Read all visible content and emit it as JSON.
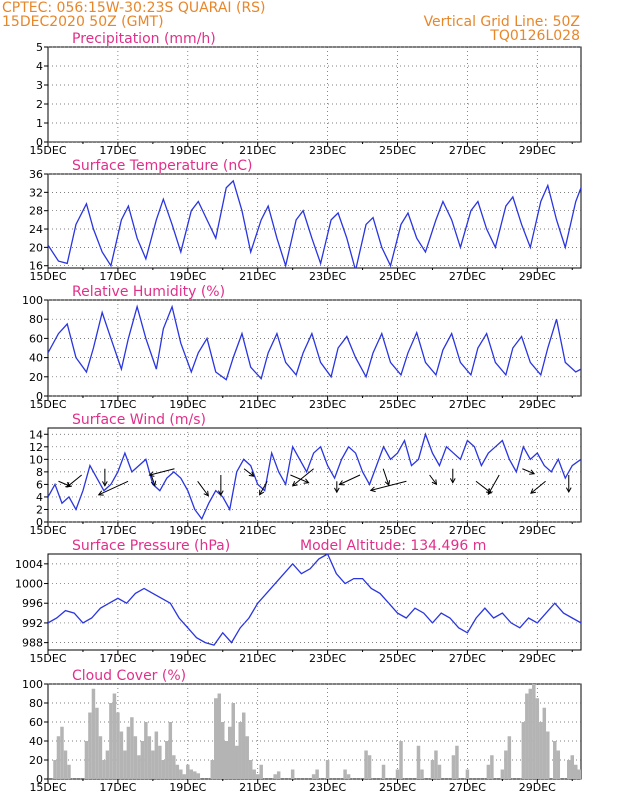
{
  "header": {
    "line1_left": "CPTEC:   056:15W-30:23S   QUARAI (RS)",
    "line2_left": "15DEC2020 50Z (GMT)",
    "line1_right": "Vertical Grid Line: 50Z",
    "line2_right": "TQ0126L028"
  },
  "colors": {
    "header": "#e8862a",
    "title": "#e0308a",
    "line": "#2a35e0",
    "bars": "#b4b4b4"
  },
  "x_ticks": [
    "15DEC",
    "17DEC",
    "19DEC",
    "21DEC",
    "23DEC",
    "25DEC",
    "27DEC",
    "29DEC"
  ],
  "x_ticks_sub": [
    "202",
    "202",
    "202",
    "202",
    "202"
  ],
  "chart_data": [
    {
      "id": "precip",
      "type": "line",
      "title": "Precipitation (mm/h)",
      "ylim": [
        0,
        5
      ],
      "yticks": [
        0,
        1,
        2,
        3,
        4,
        5
      ],
      "x_range_days": [
        0,
        15.25
      ],
      "series": [
        {
          "values": [
            0,
            0,
            0,
            0,
            0,
            0,
            0,
            0,
            0,
            0,
            0,
            0,
            0,
            0,
            0,
            0
          ]
        }
      ]
    },
    {
      "id": "temp",
      "type": "line",
      "title": "Surface Temperature (nC)",
      "ylim": [
        15.5,
        36
      ],
      "yticks": [
        16,
        20,
        24,
        28,
        32,
        36
      ],
      "x_range_days": [
        0,
        15.25
      ],
      "series": [
        {
          "x": [
            0,
            0.3,
            0.55,
            0.8,
            1.1,
            1.3,
            1.55,
            1.8,
            2.1,
            2.3,
            2.55,
            2.8,
            3.1,
            3.3,
            3.55,
            3.8,
            4.1,
            4.3,
            4.55,
            4.8,
            5.1,
            5.3,
            5.55,
            5.8,
            6.1,
            6.3,
            6.55,
            6.8,
            7.1,
            7.3,
            7.55,
            7.8,
            8.1,
            8.3,
            8.55,
            8.8,
            9.1,
            9.3,
            9.55,
            9.8,
            10.1,
            10.3,
            10.55,
            10.8,
            11.1,
            11.3,
            11.55,
            11.8,
            12.1,
            12.3,
            12.55,
            12.8,
            13.1,
            13.3,
            13.55,
            13.8,
            14.1,
            14.3,
            14.55,
            14.8,
            15.1,
            15.25
          ],
          "values": [
            20.5,
            17,
            16.5,
            25,
            29.5,
            24,
            19,
            16,
            26,
            29,
            22,
            17.5,
            26,
            30.5,
            25,
            19,
            28,
            30,
            26,
            22,
            33,
            34.5,
            28,
            19,
            26,
            29,
            22,
            16,
            26,
            28,
            22,
            16.5,
            26,
            27.5,
            22,
            15,
            25,
            26.5,
            20,
            16,
            25,
            27.5,
            22,
            19,
            26,
            30,
            26,
            20,
            28,
            30,
            24,
            20,
            29,
            31,
            25,
            20,
            30,
            33.5,
            26,
            20,
            30,
            33
          ]
        }
      ]
    },
    {
      "id": "rh",
      "type": "line",
      "title": "Relative Humidity (%)",
      "ylim": [
        0,
        100
      ],
      "yticks": [
        0,
        20,
        40,
        60,
        80,
        100
      ],
      "x_range_days": [
        0,
        15.25
      ],
      "series": [
        {
          "x": [
            0,
            0.3,
            0.55,
            0.8,
            1.1,
            1.3,
            1.55,
            1.8,
            2.1,
            2.3,
            2.55,
            2.8,
            3.1,
            3.3,
            3.55,
            3.8,
            4.1,
            4.3,
            4.55,
            4.8,
            5.1,
            5.3,
            5.55,
            5.8,
            6.1,
            6.3,
            6.55,
            6.8,
            7.1,
            7.3,
            7.55,
            7.8,
            8.1,
            8.3,
            8.55,
            8.8,
            9.1,
            9.3,
            9.55,
            9.8,
            10.1,
            10.3,
            10.55,
            10.8,
            11.1,
            11.3,
            11.55,
            11.8,
            12.1,
            12.3,
            12.55,
            12.8,
            13.1,
            13.3,
            13.55,
            13.8,
            14.1,
            14.3,
            14.55,
            14.8,
            15.1,
            15.25
          ],
          "values": [
            45,
            65,
            75,
            40,
            25,
            50,
            87,
            60,
            28,
            60,
            93,
            60,
            28,
            70,
            93,
            55,
            25,
            45,
            60,
            25,
            17,
            40,
            65,
            30,
            18,
            45,
            65,
            35,
            22,
            45,
            65,
            35,
            20,
            50,
            62,
            40,
            20,
            45,
            65,
            35,
            22,
            45,
            66,
            35,
            22,
            48,
            65,
            35,
            22,
            50,
            65,
            35,
            22,
            50,
            62,
            35,
            22,
            50,
            80,
            35,
            25,
            28
          ]
        }
      ]
    },
    {
      "id": "wind",
      "type": "line",
      "title": "Surface Wind (m/s)",
      "ylim": [
        0,
        15
      ],
      "yticks": [
        0,
        2,
        4,
        6,
        8,
        10,
        12,
        14
      ],
      "x_range_days": [
        0,
        15.25
      ],
      "series": [
        {
          "x": [
            0,
            0.2,
            0.4,
            0.6,
            0.8,
            1,
            1.2,
            1.4,
            1.6,
            1.8,
            2,
            2.2,
            2.4,
            2.6,
            2.8,
            3,
            3.2,
            3.4,
            3.6,
            3.8,
            4,
            4.2,
            4.4,
            4.6,
            4.8,
            5,
            5.2,
            5.4,
            5.6,
            5.8,
            6,
            6.2,
            6.4,
            6.6,
            6.8,
            7,
            7.2,
            7.4,
            7.6,
            7.8,
            8,
            8.2,
            8.4,
            8.6,
            8.8,
            9,
            9.2,
            9.4,
            9.6,
            9.8,
            10,
            10.2,
            10.4,
            10.6,
            10.8,
            11,
            11.2,
            11.4,
            11.6,
            11.8,
            12,
            12.2,
            12.4,
            12.6,
            12.8,
            13,
            13.2,
            13.4,
            13.6,
            13.8,
            14,
            14.2,
            14.4,
            14.6,
            14.8,
            15,
            15.25
          ],
          "values": [
            4,
            6,
            3,
            4,
            2,
            5,
            9,
            7,
            5,
            6,
            8,
            11,
            8,
            9,
            10,
            6,
            5,
            7,
            8,
            7,
            5,
            2,
            0.5,
            3,
            5,
            4,
            2,
            8,
            10,
            9,
            6,
            5,
            11,
            8,
            6,
            12,
            10,
            8,
            11,
            12,
            9,
            7,
            10,
            12,
            11,
            8,
            6,
            9,
            12,
            10,
            11,
            13,
            9,
            10,
            14,
            11,
            9,
            12,
            11,
            10,
            13,
            12,
            9,
            11,
            12,
            13,
            10,
            8,
            12,
            10,
            11,
            9,
            8,
            10,
            7,
            9,
            10
          ]
        }
      ],
      "arrow_count": 23
    },
    {
      "id": "pressure",
      "type": "line",
      "title": "Surface Pressure (hPa)",
      "annotation": "Model Altitude: 134.496 m",
      "ylim": [
        986.5,
        1006
      ],
      "yticks": [
        988,
        992,
        996,
        1000,
        1004
      ],
      "x_range_days": [
        0,
        15.25
      ],
      "series": [
        {
          "x": [
            0,
            0.25,
            0.5,
            0.75,
            1,
            1.25,
            1.5,
            1.75,
            2,
            2.25,
            2.5,
            2.75,
            3,
            3.25,
            3.5,
            3.75,
            4,
            4.25,
            4.5,
            4.75,
            5,
            5.25,
            5.5,
            5.75,
            6,
            6.25,
            6.5,
            6.75,
            7,
            7.25,
            7.5,
            7.75,
            8,
            8.25,
            8.5,
            8.75,
            9,
            9.25,
            9.5,
            9.75,
            10,
            10.25,
            10.5,
            10.75,
            11,
            11.25,
            11.5,
            11.75,
            12,
            12.25,
            12.5,
            12.75,
            13,
            13.25,
            13.5,
            13.75,
            14,
            14.25,
            14.5,
            14.75,
            15,
            15.25
          ],
          "values": [
            992,
            993,
            994.5,
            994,
            992,
            993,
            995,
            996,
            997,
            996,
            998,
            999,
            998,
            997,
            996,
            993,
            991,
            989,
            988,
            987.5,
            990,
            988,
            991,
            993,
            996,
            998,
            1000,
            1002,
            1004,
            1002,
            1003,
            1005,
            1006,
            1002,
            1000,
            1001,
            1001,
            999,
            998,
            996,
            994,
            993,
            995,
            994,
            992,
            994,
            993,
            991,
            990,
            993,
            995,
            993,
            994,
            992,
            991,
            993,
            992,
            994,
            996,
            994,
            993,
            992
          ]
        }
      ]
    },
    {
      "id": "cloud",
      "type": "bar",
      "title": "Cloud Cover (%)",
      "ylim": [
        0,
        100
      ],
      "yticks": [
        0,
        20,
        40,
        60,
        80,
        100
      ],
      "x_range_days": [
        0,
        15.25
      ],
      "x": [
        0.2,
        0.3,
        0.4,
        0.5,
        0.6,
        1.1,
        1.2,
        1.3,
        1.4,
        1.5,
        1.6,
        1.7,
        1.8,
        1.9,
        2.0,
        2.1,
        2.2,
        2.3,
        2.4,
        2.5,
        2.6,
        2.7,
        2.8,
        2.9,
        3.0,
        3.1,
        3.2,
        3.3,
        3.4,
        3.5,
        3.6,
        3.7,
        3.8,
        3.9,
        4.0,
        4.1,
        4.2,
        4.3,
        4.7,
        4.8,
        4.9,
        5.0,
        5.1,
        5.2,
        5.3,
        5.4,
        5.5,
        5.6,
        5.7,
        5.8,
        5.9,
        6.0,
        6.1,
        6.5,
        6.6,
        7.0,
        7.6,
        7.7,
        8.0,
        8.5,
        8.6,
        9.1,
        9.2,
        9.6,
        10.0,
        10.1,
        10.6,
        10.7,
        11.0,
        11.1,
        11.2,
        11.6,
        11.7,
        12.0,
        12.6,
        12.7,
        13.0,
        13.1,
        13.2,
        13.6,
        13.7,
        13.8,
        13.9,
        14.0,
        14.1,
        14.2,
        14.3,
        14.5,
        14.6,
        14.9,
        15.0,
        15.1,
        15.2
      ],
      "values": [
        20,
        45,
        55,
        30,
        15,
        40,
        70,
        95,
        75,
        45,
        20,
        30,
        80,
        90,
        70,
        50,
        30,
        55,
        65,
        45,
        25,
        40,
        60,
        45,
        30,
        50,
        35,
        20,
        40,
        60,
        25,
        15,
        10,
        5,
        15,
        10,
        8,
        6,
        20,
        85,
        90,
        60,
        40,
        55,
        80,
        35,
        60,
        70,
        45,
        20,
        10,
        5,
        15,
        5,
        8,
        10,
        5,
        10,
        20,
        10,
        5,
        30,
        25,
        15,
        10,
        40,
        35,
        10,
        20,
        30,
        15,
        25,
        35,
        10,
        15,
        25,
        10,
        30,
        45,
        60,
        90,
        95,
        100,
        85,
        60,
        75,
        50,
        40,
        30,
        20,
        25,
        15,
        10
      ]
    }
  ]
}
